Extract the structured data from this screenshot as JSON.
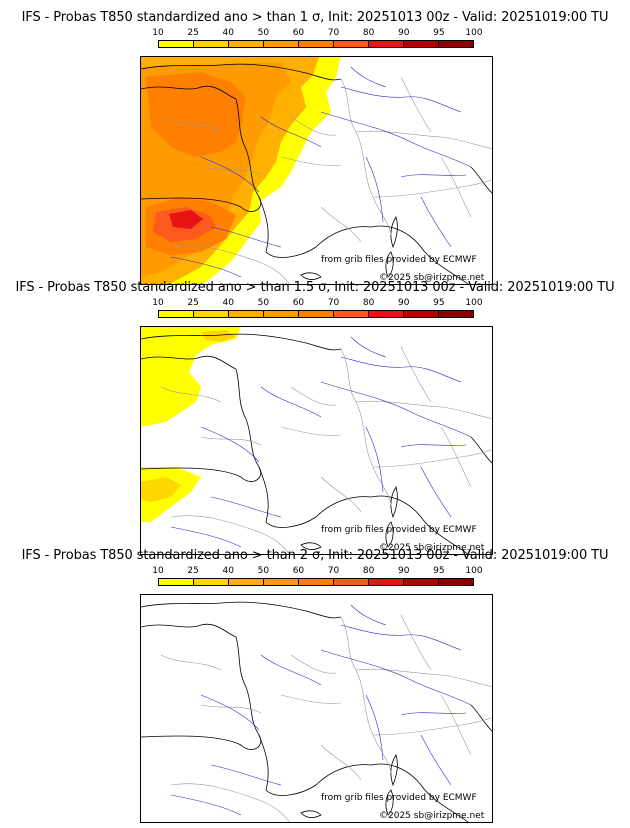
{
  "colorbar": {
    "ticks": [
      "10",
      "25",
      "40",
      "50",
      "60",
      "70",
      "80",
      "90",
      "95",
      "100"
    ],
    "colors": [
      "#ffff00",
      "#ffd700",
      "#ffb000",
      "#ff9a00",
      "#ff8000",
      "#ff5a1e",
      "#e61414",
      "#b40000",
      "#8c0000",
      "#5a0000"
    ]
  },
  "panels": [
    {
      "title": "IFS - Probas T850  standardized ano > than 1 σ, Init: 20251013 00z - Valid: 20251019:00 TU",
      "source_credit": "from grib files provided by ECMWF",
      "copyright": "©2025 sb@irizpme.net"
    },
    {
      "title": "IFS - Probas T850  standardized ano > than 1.5 σ, Init: 20251013 00z - Valid: 20251019:00 TU",
      "source_credit": "from grib files provided by ECMWF",
      "copyright": "©2025 sb@irizpme.net"
    },
    {
      "title": "IFS - Probas T850  standardized ano > than 2 σ, Init: 20251013 00z - Valid: 20251019:00 TU",
      "source_credit": "from grib files provided by ECMWF",
      "copyright": "©2025 sb@irizpme.net"
    }
  ]
}
